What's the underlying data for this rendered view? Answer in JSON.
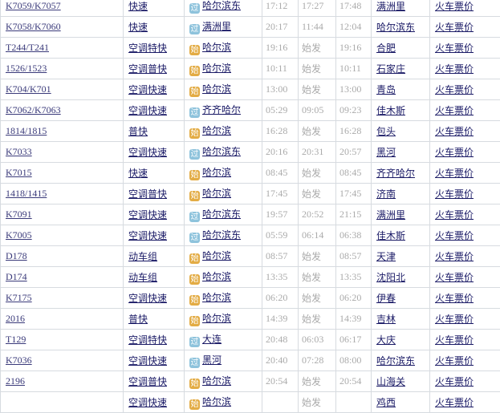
{
  "colors": {
    "pass_badge": "#8ec3dc",
    "start_badge": "#e3ac45",
    "link": "#1a1a66"
  },
  "badges": {
    "pass": "过",
    "start": "始"
  },
  "rows": [
    {
      "train": "K7059/K7057",
      "type": "快速",
      "badge": "pass",
      "from": "哈尔滨东",
      "t1": "17:12",
      "t2": "17:27",
      "t3": "17:48",
      "to": "满洲里",
      "price": "火车票价"
    },
    {
      "train": "K7058/K7060",
      "type": "快速",
      "badge": "pass",
      "from": "满洲里",
      "t1": "20:17",
      "t2": "11:44",
      "t3": "12:04",
      "to": "哈尔滨东",
      "price": "火车票价"
    },
    {
      "train": "T244/T241",
      "type": "空调特快",
      "badge": "start",
      "from": "哈尔滨",
      "t1": "19:16",
      "t2": "始发",
      "t3": "19:16",
      "to": "合肥",
      "price": "火车票价"
    },
    {
      "train": "1526/1523",
      "type": "空调普快",
      "badge": "start",
      "from": "哈尔滨",
      "t1": "10:11",
      "t2": "始发",
      "t3": "10:11",
      "to": "石家庄",
      "price": "火车票价"
    },
    {
      "train": "K704/K701",
      "type": "空调快速",
      "badge": "start",
      "from": "哈尔滨",
      "t1": "13:00",
      "t2": "始发",
      "t3": "13:00",
      "to": "青岛",
      "price": "火车票价"
    },
    {
      "train": "K7062/K7063",
      "type": "空调快速",
      "badge": "pass",
      "from": "齐齐哈尔",
      "t1": "05:29",
      "t2": "09:05",
      "t3": "09:23",
      "to": "佳木斯",
      "price": "火车票价"
    },
    {
      "train": "1814/1815",
      "type": "普快",
      "badge": "start",
      "from": "哈尔滨",
      "t1": "16:28",
      "t2": "始发",
      "t3": "16:28",
      "to": "包头",
      "price": "火车票价"
    },
    {
      "train": "K7033",
      "type": "空调快速",
      "badge": "pass",
      "from": "哈尔滨东",
      "t1": "20:16",
      "t2": "20:31",
      "t3": "20:57",
      "to": "黑河",
      "price": "火车票价"
    },
    {
      "train": "K7015",
      "type": "快速",
      "badge": "start",
      "from": "哈尔滨",
      "t1": "08:45",
      "t2": "始发",
      "t3": "08:45",
      "to": "齐齐哈尔",
      "price": "火车票价"
    },
    {
      "train": "1418/1415",
      "type": "空调普快",
      "badge": "start",
      "from": "哈尔滨",
      "t1": "17:45",
      "t2": "始发",
      "t3": "17:45",
      "to": "济南",
      "price": "火车票价"
    },
    {
      "train": "K7091",
      "type": "空调快速",
      "badge": "pass",
      "from": "哈尔滨东",
      "t1": "19:57",
      "t2": "20:52",
      "t3": "21:15",
      "to": "满洲里",
      "price": "火车票价"
    },
    {
      "train": "K7005",
      "type": "空调快速",
      "badge": "pass",
      "from": "哈尔滨东",
      "t1": "05:59",
      "t2": "06:14",
      "t3": "06:38",
      "to": "佳木斯",
      "price": "火车票价"
    },
    {
      "train": "D178",
      "type": "动车组",
      "badge": "start",
      "from": "哈尔滨",
      "t1": "08:57",
      "t2": "始发",
      "t3": "08:57",
      "to": "天津",
      "price": "火车票价"
    },
    {
      "train": "D174",
      "type": "动车组",
      "badge": "start",
      "from": "哈尔滨",
      "t1": "13:35",
      "t2": "始发",
      "t3": "13:35",
      "to": "沈阳北",
      "price": "火车票价"
    },
    {
      "train": "K7175",
      "type": "空调快速",
      "badge": "start",
      "from": "哈尔滨",
      "t1": "06:20",
      "t2": "始发",
      "t3": "06:20",
      "to": "伊春",
      "price": "火车票价"
    },
    {
      "train": "2016",
      "type": "普快",
      "badge": "start",
      "from": "哈尔滨",
      "t1": "14:39",
      "t2": "始发",
      "t3": "14:39",
      "to": "吉林",
      "price": "火车票价"
    },
    {
      "train": "T129",
      "type": "空调特快",
      "badge": "pass",
      "from": "大连",
      "t1": "20:48",
      "t2": "06:03",
      "t3": "06:17",
      "to": "大庆",
      "price": "火车票价"
    },
    {
      "train": "K7036",
      "type": "空调快速",
      "badge": "pass",
      "from": "黑河",
      "t1": "20:40",
      "t2": "07:28",
      "t3": "08:00",
      "to": "哈尔滨东",
      "price": "火车票价"
    },
    {
      "train": "2196",
      "type": "空调普快",
      "badge": "start",
      "from": "哈尔滨",
      "t1": "20:54",
      "t2": "始发",
      "t3": "20:54",
      "to": "山海关",
      "price": "火车票价"
    },
    {
      "train": "",
      "type": "空调快速",
      "badge": "start",
      "from": "哈尔滨",
      "t1": "",
      "t2": "始发",
      "t3": "",
      "to": "鸡西",
      "price": "火车票价"
    }
  ]
}
